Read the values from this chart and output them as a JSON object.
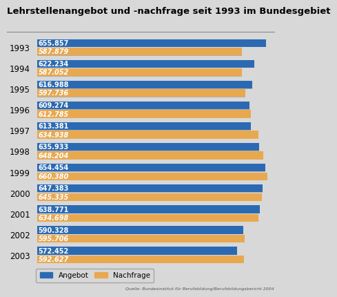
{
  "title": "Lehrstellenangebot und -nachfrage seit 1993 im Bundesgebiet",
  "years": [
    1993,
    1994,
    1995,
    1996,
    1997,
    1998,
    1999,
    2000,
    2001,
    2002,
    2003
  ],
  "angebot": [
    655857,
    622234,
    616988,
    609274,
    613381,
    635933,
    654454,
    647383,
    638771,
    590328,
    572452
  ],
  "nachfrage": [
    587879,
    587052,
    597736,
    612785,
    634938,
    648204,
    660380,
    645335,
    634698,
    595706,
    592627
  ],
  "angebot_labels": [
    "655.857",
    "622.234",
    "616.988",
    "609.274",
    "613.381",
    "635.933",
    "654.454",
    "647.383",
    "638.771",
    "590.328",
    "572.452"
  ],
  "nachfrage_labels": [
    "587.879",
    "587.052",
    "597.736",
    "612.785",
    "634.938",
    "648.204",
    "660.380",
    "645.335",
    "634.698",
    "595.706",
    "592.627"
  ],
  "color_angebot": "#2B6AB3",
  "color_nachfrage": "#E8A850",
  "color_shadow": "#B0B0B0",
  "background_color": "#D8D8D8",
  "plot_bg_color": "#D8D8D8",
  "title_fontsize": 9.5,
  "label_fontsize": 7,
  "tick_fontsize": 8.5,
  "source_text": "Quelle: Bundesinstitut für Berufsbildung/Berufsbildungsbericht 2004",
  "legend_angebot": "Angebot",
  "legend_nachfrage": "Nachfrage",
  "xmax": 680000
}
